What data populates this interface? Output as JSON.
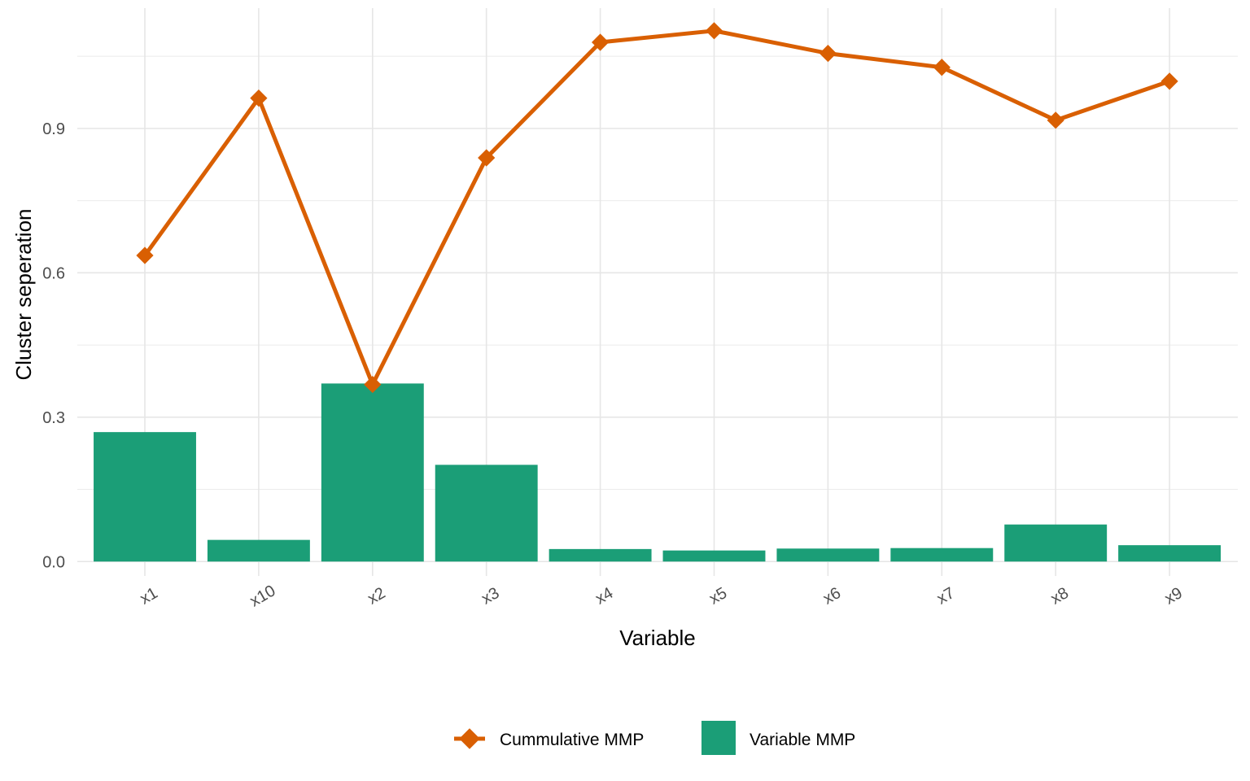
{
  "chart_data": {
    "type": "bar",
    "categories": [
      "x1",
      "x10",
      "x2",
      "x3",
      "x4",
      "x5",
      "x6",
      "x7",
      "x8",
      "x9"
    ],
    "series": [
      {
        "name": "Variable MMP",
        "type": "bar",
        "color": "#1b9e77",
        "values": [
          0.269,
          0.045,
          0.37,
          0.201,
          0.026,
          0.023,
          0.027,
          0.028,
          0.077,
          0.034
        ]
      },
      {
        "name": "Cummulative MMP",
        "type": "line",
        "color": "#d95f02",
        "marker": "diamond",
        "values": [
          0.636,
          0.963,
          0.368,
          0.839,
          1.079,
          1.103,
          1.056,
          1.027,
          0.917,
          0.998
        ]
      }
    ],
    "xlabel": "Variable",
    "ylabel": "Cluster seperation",
    "ylim": [
      -0.03,
      1.15
    ],
    "yticks": [
      0.0,
      0.3,
      0.6,
      0.9
    ],
    "ytick_labels": [
      "0.0",
      "0.3",
      "0.6",
      "0.9"
    ],
    "grid": true,
    "legend_position": "bottom",
    "legend": {
      "line_label": "Cummulative MMP",
      "bar_label": "Variable MMP"
    }
  }
}
